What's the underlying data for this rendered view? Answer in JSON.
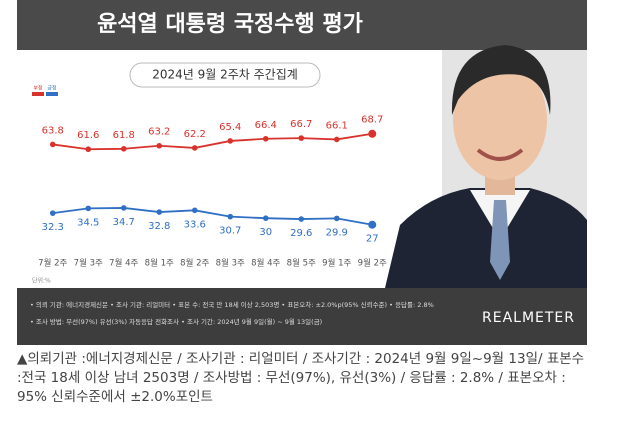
{
  "chart_data": {
    "type": "line",
    "title": "윤석열 대통령 국정수행 평가",
    "subtitle": "2024년 9월 2주차 주간집계",
    "unit_note": "단위:%",
    "categories": [
      "7월 2주",
      "7월 3주",
      "7월 4주",
      "8월 1주",
      "8월 2주",
      "8월 3주",
      "8월 4주",
      "8월 5주",
      "9월 1주",
      "9월 2주"
    ],
    "series": [
      {
        "name": "부정",
        "color": "#d8322c",
        "values": [
          63.8,
          61.6,
          61.8,
          63.2,
          62.2,
          65.4,
          66.4,
          66.7,
          66.1,
          68.7
        ]
      },
      {
        "name": "긍정",
        "color": "#2f6fc4",
        "values": [
          32.3,
          34.5,
          34.7,
          32.8,
          33.6,
          30.7,
          30.0,
          29.6,
          29.9,
          27.0
        ]
      }
    ],
    "ylim": [
      20,
      75
    ]
  },
  "notes": [
    "• 의뢰 기관: 에너지경제신문  • 조사 기관: 리얼미터  • 표본 수: 전국 만 18세 이상 2,503명  • 표본오차: ±2.0%p(95% 신뢰수준)  • 응답률: 2.8%",
    "• 조사 방법: 무선(97%) 유선(3%) 자동응답 전화조사  • 조사 기간: 2024년 9월 9일(월) ~ 9월 13일(금)"
  ],
  "logo": "REALMETER",
  "caption": "▲의뢰기관 :에너지경제신문 / 조사기관 : 리얼미터 / 조사기간 : 2024년 9월 9일~9월 13일/ 표본수 :전국 18세 이상 남녀 2503명 / 조사방법 : 무선(97%), 유선(3%) / 응답률 : 2.8% / 표본오차 : 95% 신뢰수준에서 ±2.0%포인트"
}
